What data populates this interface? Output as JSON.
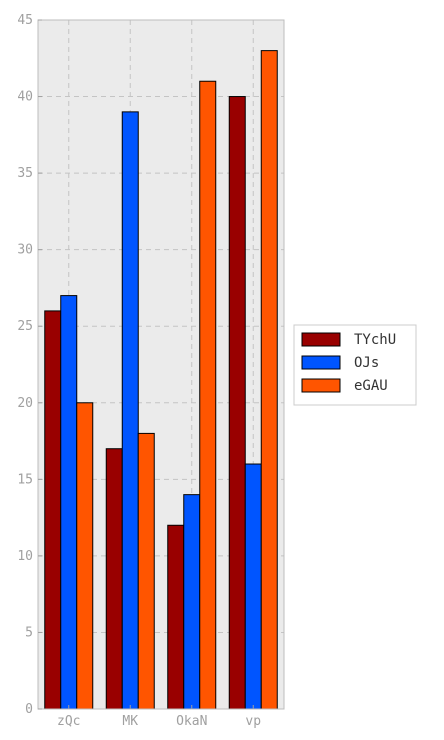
{
  "chart_data": {
    "type": "bar",
    "categories": [
      "zQc",
      "MK",
      "OkaN",
      "vp"
    ],
    "series": [
      {
        "name": "TYchU",
        "color": "#990000",
        "values": [
          26,
          17,
          12,
          40
        ]
      },
      {
        "name": "OJs",
        "color": "#0055ff",
        "values": [
          27,
          39,
          14,
          16
        ]
      },
      {
        "name": "eGAU",
        "color": "#ff5500",
        "values": [
          20,
          18,
          41,
          43
        ]
      }
    ],
    "ylim": [
      0,
      45
    ],
    "yticks": [
      0,
      5,
      10,
      15,
      20,
      25,
      30,
      35,
      40,
      45
    ],
    "grid": true,
    "legend_position": "right"
  }
}
